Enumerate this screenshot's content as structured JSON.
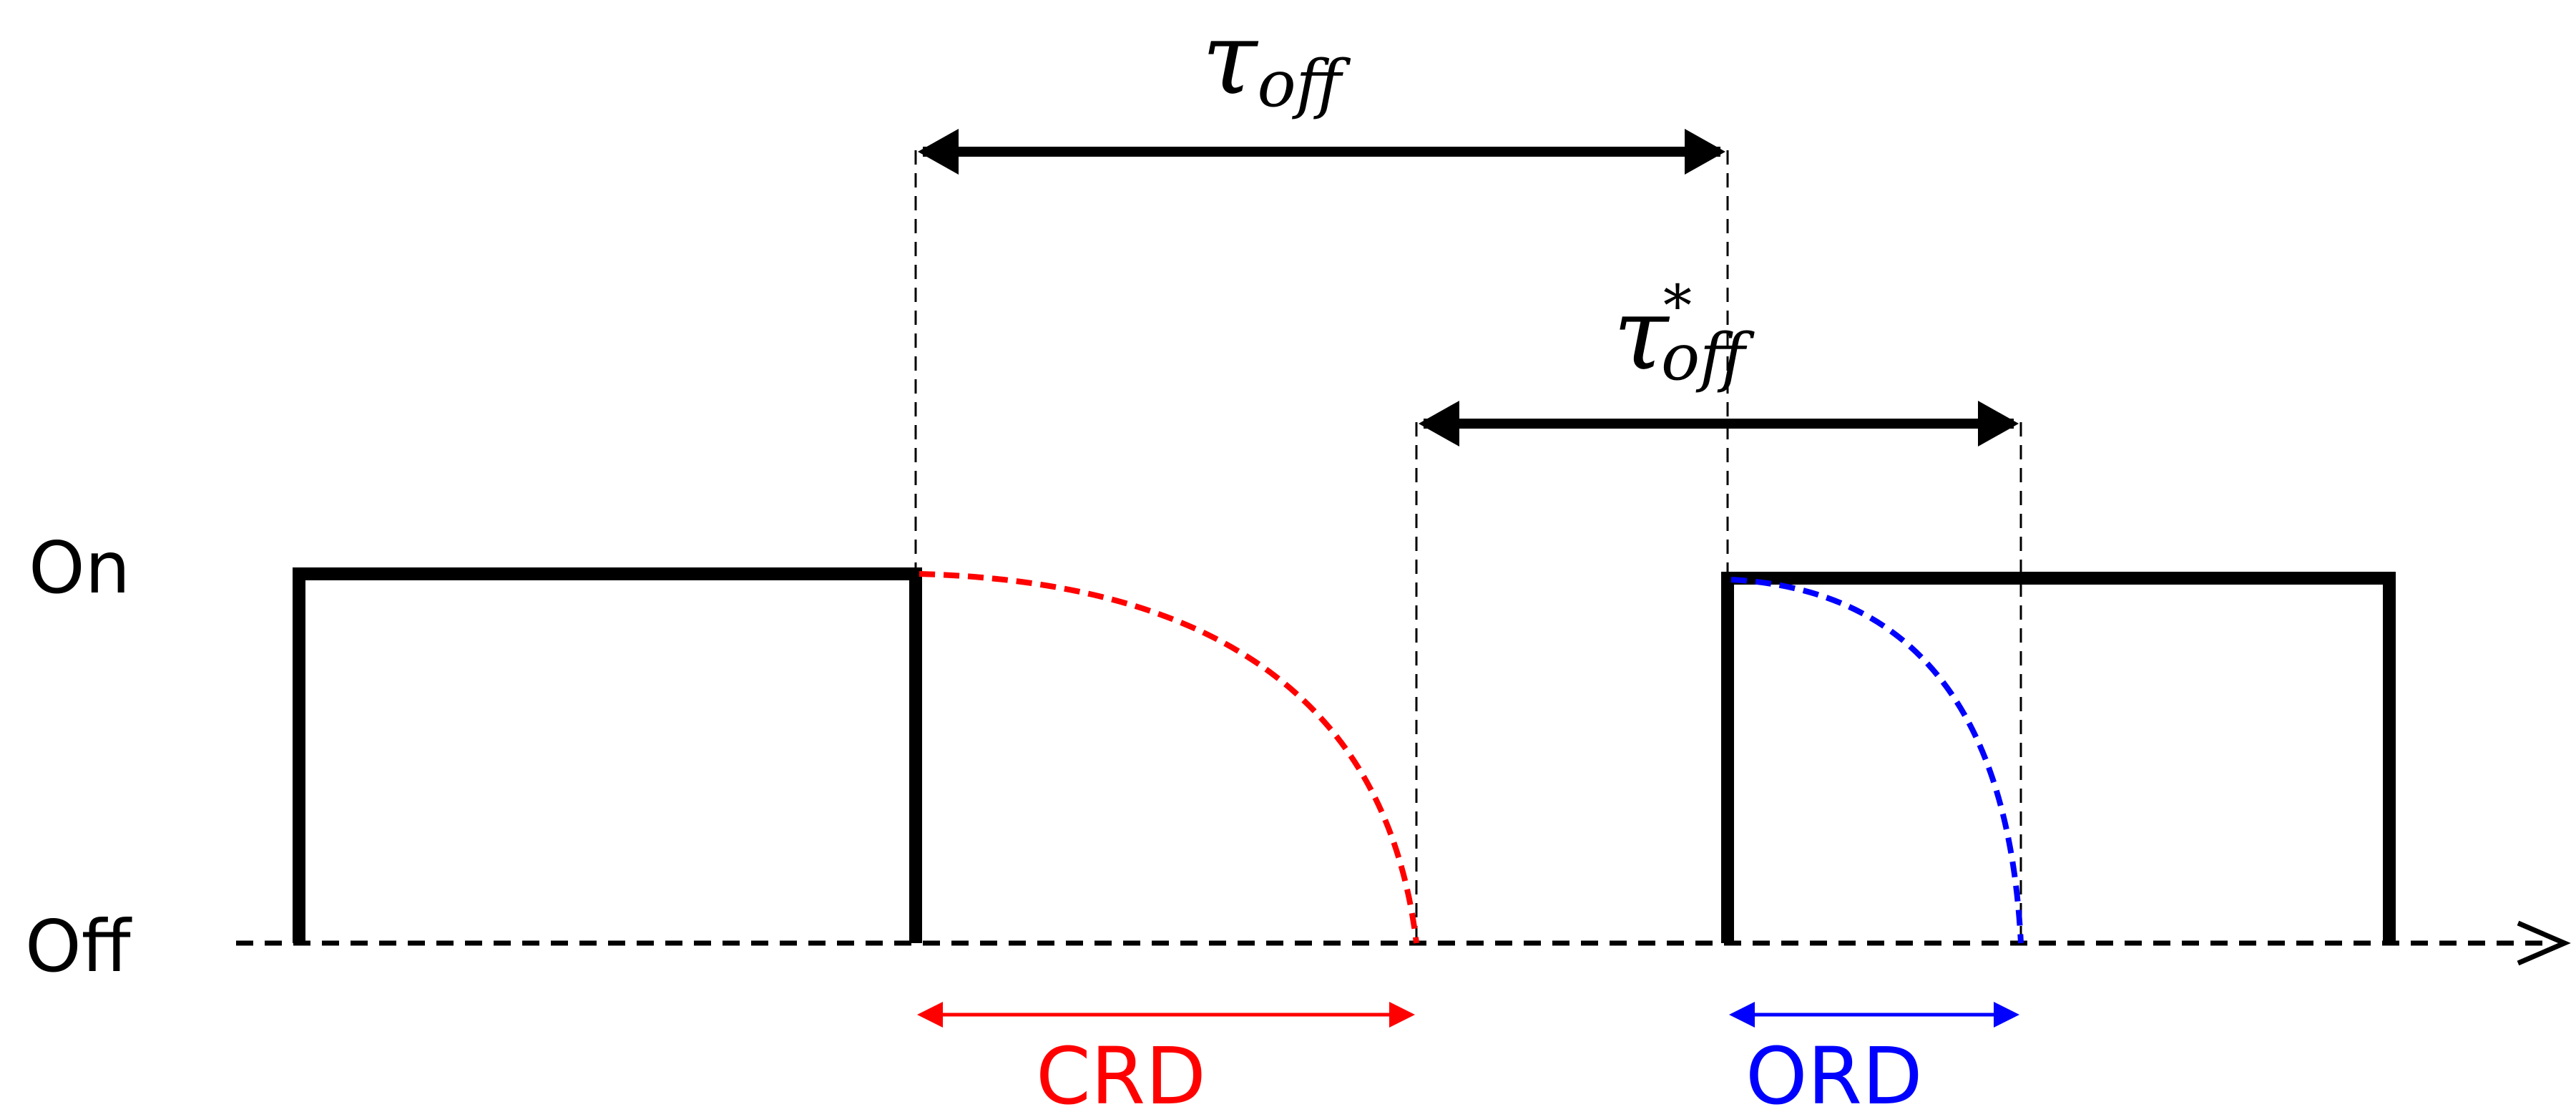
{
  "diagram": {
    "state_labels": {
      "on": "On",
      "off": "Off"
    },
    "tau_off": {
      "symbol": "τ",
      "subscript": "off"
    },
    "tau_off_star": {
      "symbol": "τ",
      "superscript": "*",
      "subscript": "off"
    },
    "crd_label": "CRD",
    "ord_label": "ORD",
    "colors": {
      "signal": "#000000",
      "crd": "#ff0000",
      "ord": "#0000ff"
    }
  }
}
